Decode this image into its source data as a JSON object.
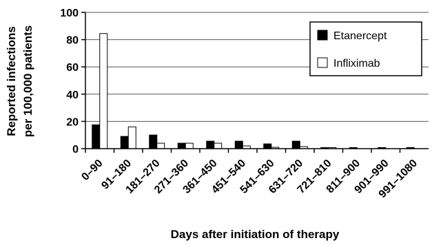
{
  "chart_data": {
    "type": "bar",
    "xlabel": "Days after initiation of therapy",
    "ylabel_lines": [
      "Reported infections",
      "per 100,000 patients"
    ],
    "ylim": [
      0,
      100
    ],
    "yticks": [
      0,
      20,
      40,
      60,
      80,
      100
    ],
    "grid": "horizontal",
    "legend_position": "top-right",
    "categories": [
      "0–90",
      "91–180",
      "181–270",
      "271–360",
      "361–450",
      "451–540",
      "541–630",
      "631–720",
      "721–810",
      "811–900",
      "901–990",
      "991–1080"
    ],
    "series": [
      {
        "name": "Etanercept",
        "color": "#000000",
        "values": [
          17.5,
          9,
          10,
          4,
          5.5,
          5.5,
          3.5,
          5.5,
          0.8,
          0.8,
          0.8,
          0.8
        ]
      },
      {
        "name": "Infliximab",
        "color": "#ffffff",
        "values": [
          84.5,
          16,
          4,
          4,
          4,
          2,
          1,
          1.5,
          0.8,
          0,
          0,
          0
        ]
      }
    ]
  }
}
